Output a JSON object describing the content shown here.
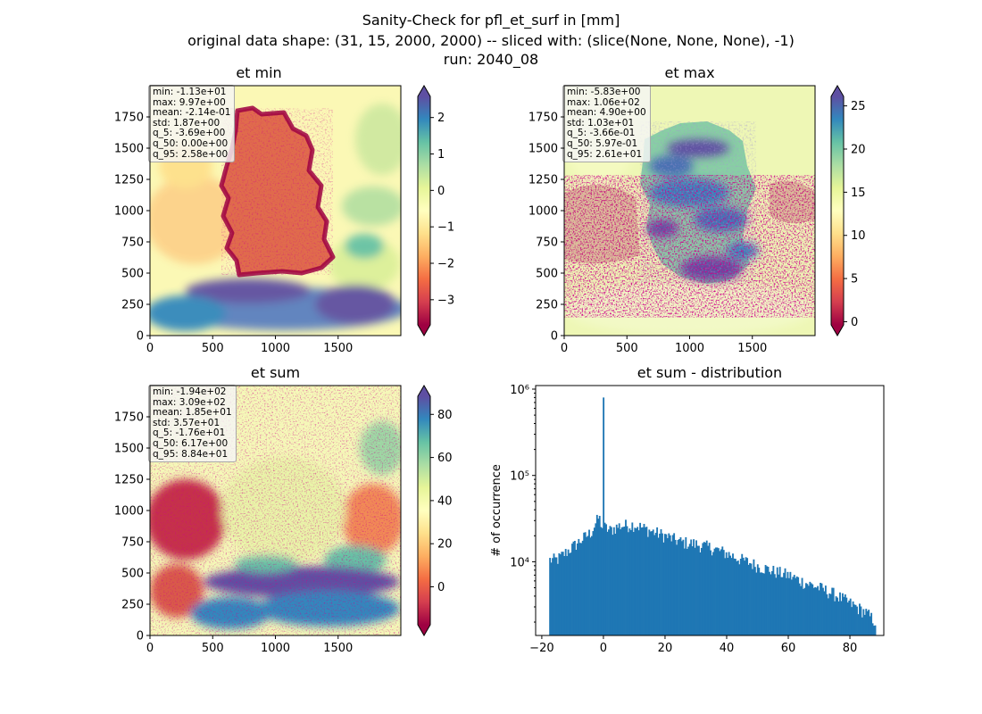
{
  "figure": {
    "title_lines": [
      "Sanity-Check for pfl_et_surf in [mm]",
      "original data shape: (31, 15, 2000, 2000) -- sliced with: (slice(None, None, None), -1)",
      "run: 2040_08"
    ]
  },
  "colormap": [
    "#9e0142",
    "#d53e4f",
    "#f46d43",
    "#fdae61",
    "#fee08b",
    "#ffffbf",
    "#e6f598",
    "#abdda4",
    "#66c2a5",
    "#3288bd",
    "#5e4fa2"
  ],
  "chart_data": [
    {
      "type": "heatmap",
      "title": "et min",
      "x_ticks": [
        "0",
        "500",
        "1000",
        "1500"
      ],
      "y_ticks": [
        "0",
        "250",
        "500",
        "750",
        "1000",
        "1250",
        "1500",
        "1750"
      ],
      "xlim": [
        0,
        2000
      ],
      "ylim": [
        0,
        2000
      ],
      "colorbar": {
        "ticks": [
          -3,
          -2,
          -1,
          0,
          1,
          2
        ],
        "tick_labels": [
          "−3",
          "−2",
          "−1",
          "0",
          "1",
          "2"
        ],
        "range": [
          -3.69,
          2.58
        ],
        "extend": "both"
      },
      "stats": [
        "min: -1.13e+01",
        "max: 9.97e+00",
        "mean: -2.14e-01",
        "std: 1.87e+00",
        "q_5: -3.69e+00",
        "q_50: 0.00e+00",
        "q_95: 2.58e+00"
      ]
    },
    {
      "type": "heatmap",
      "title": "et max",
      "x_ticks": [
        "0",
        "500",
        "1000",
        "1500"
      ],
      "y_ticks": [
        "0",
        "250",
        "500",
        "750",
        "1000",
        "1250",
        "1500",
        "1750"
      ],
      "xlim": [
        0,
        2000
      ],
      "ylim": [
        0,
        2000
      ],
      "colorbar": {
        "ticks": [
          0,
          5,
          10,
          15,
          20,
          25
        ],
        "tick_labels": [
          "0",
          "5",
          "10",
          "15",
          "20",
          "25"
        ],
        "range": [
          -0.366,
          26.1
        ],
        "extend": "both"
      },
      "stats": [
        "min: -5.83e+00",
        "max: 1.06e+02",
        "mean: 4.90e+00",
        "std: 1.03e+01",
        "q_5: -3.66e-01",
        "q_50: 5.97e-01",
        "q_95: 2.61e+01"
      ]
    },
    {
      "type": "heatmap",
      "title": "et sum",
      "x_ticks": [
        "0",
        "500",
        "1000",
        "1500"
      ],
      "y_ticks": [
        "0",
        "250",
        "500",
        "750",
        "1000",
        "1250",
        "1500",
        "1750"
      ],
      "xlim": [
        0,
        2000
      ],
      "ylim": [
        0,
        2000
      ],
      "colorbar": {
        "ticks": [
          0,
          20,
          40,
          60,
          80
        ],
        "tick_labels": [
          "0",
          "20",
          "40",
          "60",
          "80"
        ],
        "range": [
          -17.6,
          88.4
        ],
        "extend": "both"
      },
      "stats": [
        "min: -1.94e+02",
        "max: 3.09e+02",
        "mean: 1.85e+01",
        "std: 3.57e+01",
        "q_5: -1.76e+01",
        "q_50: 6.17e+00",
        "q_95: 8.84e+01"
      ]
    },
    {
      "type": "bar",
      "title": "et sum - distribution",
      "ylabel": "# of occurrence",
      "y_scale": "log",
      "color": "#1f77b4",
      "xlim": [
        -22,
        91
      ],
      "ylim": [
        1400,
        1100000
      ],
      "x_ticks": [
        -20,
        0,
        20,
        40,
        60,
        80
      ],
      "x_tick_labels": [
        "−20",
        "0",
        "20",
        "40",
        "60",
        "80"
      ],
      "y_ticks": [
        10000,
        100000,
        1000000
      ],
      "y_tick_labels": [
        "10⁴",
        "10⁵",
        "10⁶"
      ],
      "bins": {
        "start": -17.6,
        "end": 88.4,
        "count": 250
      },
      "envelope": [
        [
          -17.6,
          10500
        ],
        [
          -15,
          10600
        ],
        [
          -12,
          13000
        ],
        [
          -8,
          17000
        ],
        [
          -4,
          22000
        ],
        [
          -1.5,
          33000
        ],
        [
          -0.4,
          25000
        ],
        [
          0,
          800000
        ],
        [
          0.4,
          25000
        ],
        [
          2,
          23000
        ],
        [
          5,
          26000
        ],
        [
          10,
          27000
        ],
        [
          15,
          23000
        ],
        [
          20,
          20000
        ],
        [
          25,
          17000
        ],
        [
          30,
          16000
        ],
        [
          35,
          14500
        ],
        [
          40,
          12500
        ],
        [
          45,
          10500
        ],
        [
          50,
          9000
        ],
        [
          55,
          7800
        ],
        [
          60,
          7000
        ],
        [
          65,
          5800
        ],
        [
          70,
          5000
        ],
        [
          75,
          4200
        ],
        [
          80,
          3300
        ],
        [
          85,
          2600
        ],
        [
          88.4,
          2000
        ]
      ]
    }
  ]
}
